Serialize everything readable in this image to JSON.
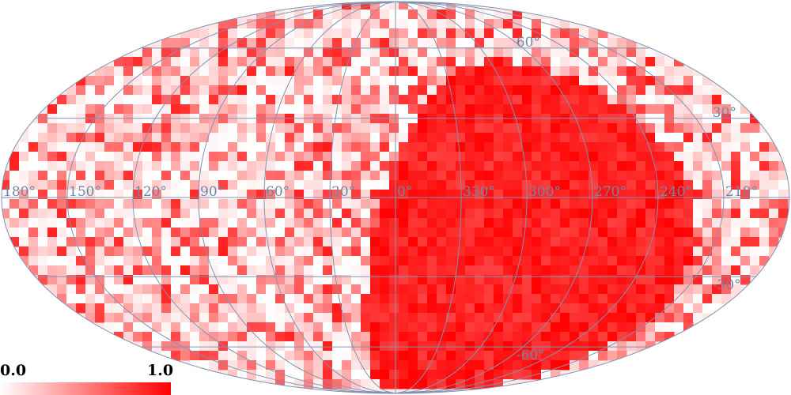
{
  "map": {
    "projection": "mollweide",
    "graticule_color": "#7f93b3",
    "lon_labels": [
      "180°",
      "150°",
      "120°",
      "90°",
      "60°",
      "30°",
      "0°",
      "330°",
      "300°",
      "270°",
      "240°",
      "210°"
    ],
    "lat_labels": [
      "60°",
      "30°",
      "-30°",
      "-60°"
    ],
    "colormap": {
      "low": "#ffffff",
      "high": "#ff0000"
    }
  },
  "colorbar": {
    "min_label": "0.0",
    "max_label": "1.0"
  }
}
